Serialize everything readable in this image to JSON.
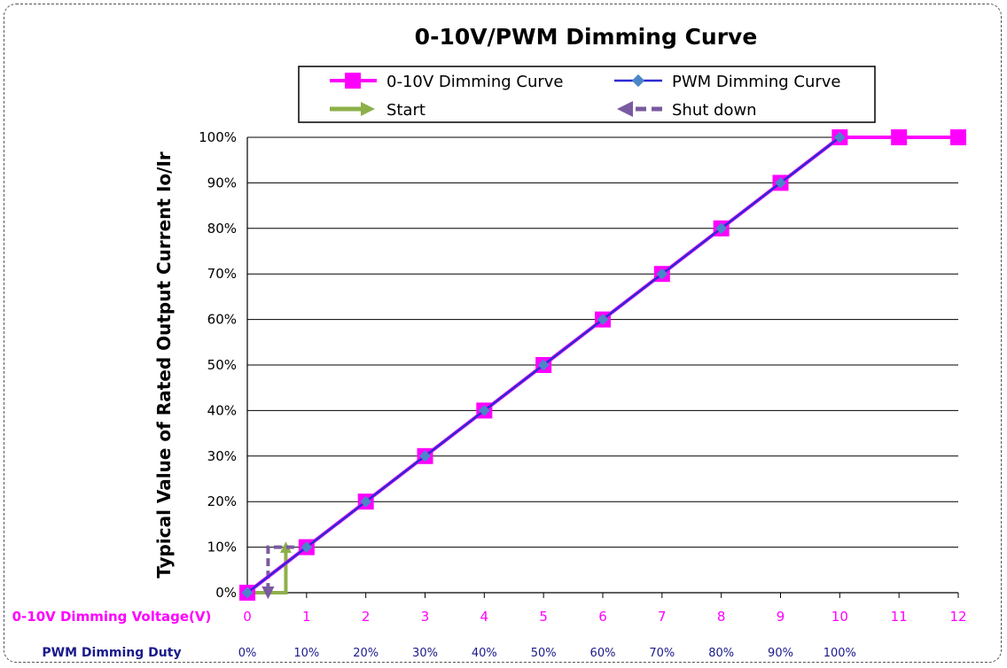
{
  "chart_data": {
    "type": "line",
    "title": "0-10V/PWM Dimming Curve",
    "ylabel": "Typical Value of Rated Output Current Io/Ir",
    "ylim": [
      0,
      100
    ],
    "y_ticks": [
      "0%",
      "10%",
      "20%",
      "30%",
      "40%",
      "50%",
      "60%",
      "70%",
      "80%",
      "90%",
      "100%"
    ],
    "xlim": [
      0,
      12
    ],
    "x_axis_rows": [
      {
        "label": "0-10V Dimming Voltage(V)",
        "color": "#ff00ff",
        "ticks": [
          "0",
          "1",
          "2",
          "3",
          "4",
          "5",
          "6",
          "7",
          "8",
          "9",
          "10",
          "11",
          "12"
        ]
      },
      {
        "label": "PWM Dimming Duty",
        "color": "#1a1a8c",
        "ticks": [
          "0%",
          "10%",
          "20%",
          "30%",
          "40%",
          "50%",
          "60%",
          "70%",
          "80%",
          "90%",
          "100%"
        ]
      }
    ],
    "series": [
      {
        "name": "0-10V Dimming Curve",
        "color": "#ff00ff",
        "marker": "square",
        "x": [
          0,
          1,
          2,
          3,
          4,
          5,
          6,
          7,
          8,
          9,
          10,
          11,
          12
        ],
        "y": [
          0,
          10,
          20,
          30,
          40,
          50,
          60,
          70,
          80,
          90,
          100,
          100,
          100
        ]
      },
      {
        "name": "PWM Dimming Curve",
        "color": "#2a2ad4",
        "marker": "diamond",
        "x": [
          0,
          1,
          2,
          3,
          4,
          5,
          6,
          7,
          8,
          9,
          10
        ],
        "y": [
          0,
          10,
          20,
          30,
          40,
          50,
          60,
          70,
          80,
          90,
          100
        ]
      }
    ],
    "annotations": [
      {
        "name": "Start",
        "color": "#8db04a",
        "style": "solid-arrow",
        "path": [
          [
            0,
            0
          ],
          [
            0.65,
            0
          ],
          [
            0.65,
            10
          ]
        ]
      },
      {
        "name": "Shut down",
        "color": "#7a5aa0",
        "style": "dashed-arrow",
        "path": [
          [
            1,
            10
          ],
          [
            0.35,
            10
          ],
          [
            0.35,
            0
          ]
        ]
      }
    ],
    "legend": {
      "placement": "top-center",
      "items": [
        "0-10V Dimming Curve",
        "PWM Dimming Curve",
        "Start",
        "Shut down"
      ]
    },
    "grid": "horizontal"
  }
}
